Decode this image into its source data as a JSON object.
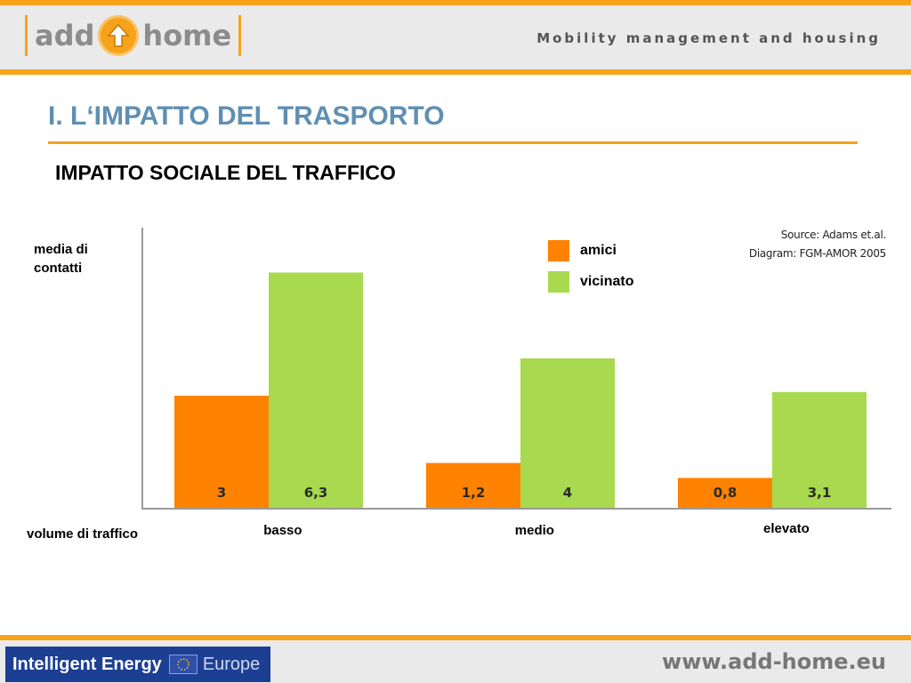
{
  "header": {
    "logo_left": "add",
    "logo_right": "home",
    "tagline": "Mobility management and housing"
  },
  "title": "I. L‘IMPATTO DEL TRASPORTO",
  "subtitle": "IMPATTO SOCIALE DEL TRAFFICO",
  "colors": {
    "accent_orange": "#f7a21b",
    "title_blue": "#5f8fb3",
    "series_amici": "#ff8200",
    "series_vicinato": "#a8d94e"
  },
  "chart_data": {
    "type": "bar",
    "categories": [
      "basso",
      "medio",
      "elevato"
    ],
    "series": [
      {
        "name": "amici",
        "values": [
          3,
          1.2,
          0.8
        ],
        "labels": [
          "3",
          "1,2",
          "0,8"
        ],
        "color": "#ff8200"
      },
      {
        "name": "vicinato",
        "values": [
          6.3,
          4,
          3.1
        ],
        "labels": [
          "6,3",
          "4",
          "3,1"
        ],
        "color": "#a8d94e"
      }
    ],
    "ylabel": "media di contatti",
    "xlabel": "volume di traffico",
    "ylim": [
      0,
      7.5
    ],
    "source_lines": [
      "Source: Adams et.al.",
      "Diagram: FGM-AMOR 2005"
    ],
    "legend_position": "top-right",
    "grid": false
  },
  "footer": {
    "program_text": "Intelligent Energy",
    "program_suffix": "Europe",
    "website": "www.add-home.eu"
  }
}
